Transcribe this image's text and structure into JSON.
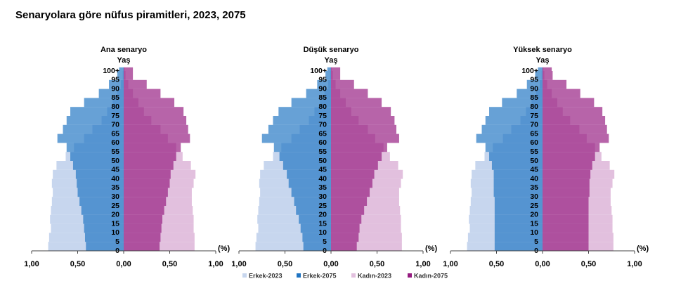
{
  "title": "Senaryolara göre nüfus piramitleri, 2023, 2075",
  "chart_data": [
    {
      "type": "pyramid",
      "subtitle": "Ana senaryo",
      "ylabel": "Yaş",
      "xlabel": "(%)",
      "categories": [
        "0",
        "5",
        "10",
        "15",
        "20",
        "25",
        "30",
        "35",
        "40",
        "45",
        "50",
        "55",
        "60",
        "65",
        "70",
        "75",
        "80",
        "85",
        "90",
        "95",
        "100+"
      ],
      "xlim": [
        -1,
        1
      ],
      "xticks": [
        {
          "value": -1,
          "label": "1,00"
        },
        {
          "value": -0.5,
          "label": "0,50"
        },
        {
          "value": 0,
          "label": "0,00"
        },
        {
          "value": 0.5,
          "label": "0,50"
        },
        {
          "value": 1,
          "label": "1,00"
        }
      ],
      "series": [
        {
          "name": "Erkek-2023",
          "color": "#c7d6ee",
          "values": [
            0.82,
            0.81,
            0.79,
            0.8,
            0.79,
            0.78,
            0.77,
            0.78,
            0.77,
            0.73,
            0.63,
            0.54,
            0.43,
            0.34,
            0.24,
            0.18,
            0.12,
            0.07,
            0.03,
            0.01,
            0.005
          ]
        },
        {
          "name": "Erkek-2075",
          "color": "#1f74c2",
          "values": [
            0.41,
            0.42,
            0.43,
            0.44,
            0.46,
            0.48,
            0.5,
            0.51,
            0.52,
            0.55,
            0.58,
            0.62,
            0.72,
            0.66,
            0.62,
            0.58,
            0.43,
            0.27,
            0.16,
            0.07,
            0.05
          ]
        },
        {
          "name": "Kadın-2023",
          "color": "#e2c0de",
          "values": [
            0.77,
            0.77,
            0.76,
            0.76,
            0.75,
            0.74,
            0.74,
            0.76,
            0.78,
            0.73,
            0.64,
            0.57,
            0.48,
            0.4,
            0.3,
            0.22,
            0.16,
            0.1,
            0.05,
            0.02,
            0.01
          ]
        },
        {
          "name": "Kadın-2075",
          "color": "#951b80",
          "values": [
            0.39,
            0.4,
            0.41,
            0.42,
            0.44,
            0.46,
            0.48,
            0.5,
            0.51,
            0.54,
            0.57,
            0.62,
            0.72,
            0.7,
            0.68,
            0.65,
            0.55,
            0.4,
            0.25,
            0.1,
            0.1
          ]
        }
      ]
    },
    {
      "type": "pyramid",
      "subtitle": "Düşük senaryo",
      "ylabel": "Yaş",
      "xlabel": "(%)",
      "categories": [
        "0",
        "5",
        "10",
        "15",
        "20",
        "25",
        "30",
        "35",
        "40",
        "45",
        "50",
        "55",
        "60",
        "65",
        "70",
        "75",
        "80",
        "85",
        "90",
        "95",
        "100+"
      ],
      "xlim": [
        -1,
        1
      ],
      "xticks": [
        {
          "value": -1,
          "label": "1,00"
        },
        {
          "value": -0.5,
          "label": "0,50"
        },
        {
          "value": 0,
          "label": "0,00"
        },
        {
          "value": 0.5,
          "label": "0,50"
        },
        {
          "value": 1,
          "label": "1,00"
        }
      ],
      "series": [
        {
          "name": "Erkek-2023",
          "color": "#c7d6ee",
          "values": [
            0.82,
            0.81,
            0.79,
            0.8,
            0.79,
            0.78,
            0.77,
            0.78,
            0.77,
            0.73,
            0.63,
            0.54,
            0.43,
            0.34,
            0.24,
            0.18,
            0.12,
            0.07,
            0.03,
            0.01,
            0.005
          ]
        },
        {
          "name": "Erkek-2075",
          "color": "#1f74c2",
          "values": [
            0.3,
            0.31,
            0.33,
            0.35,
            0.38,
            0.4,
            0.43,
            0.46,
            0.48,
            0.52,
            0.56,
            0.62,
            0.75,
            0.68,
            0.63,
            0.57,
            0.43,
            0.27,
            0.15,
            0.06,
            0.04
          ]
        },
        {
          "name": "Kadın-2023",
          "color": "#e2c0de",
          "values": [
            0.77,
            0.77,
            0.76,
            0.76,
            0.75,
            0.74,
            0.74,
            0.76,
            0.78,
            0.73,
            0.64,
            0.57,
            0.48,
            0.4,
            0.3,
            0.22,
            0.16,
            0.1,
            0.05,
            0.02,
            0.01
          ]
        },
        {
          "name": "Kadın-2075",
          "color": "#951b80",
          "values": [
            0.28,
            0.3,
            0.31,
            0.33,
            0.36,
            0.39,
            0.42,
            0.45,
            0.47,
            0.51,
            0.55,
            0.61,
            0.74,
            0.71,
            0.69,
            0.65,
            0.55,
            0.4,
            0.25,
            0.1,
            0.1
          ]
        }
      ]
    },
    {
      "type": "pyramid",
      "subtitle": "Yüksek senaryo",
      "ylabel": "Yaş",
      "xlabel": "(%)",
      "categories": [
        "0",
        "5",
        "10",
        "15",
        "20",
        "25",
        "30",
        "35",
        "40",
        "45",
        "50",
        "55",
        "60",
        "65",
        "70",
        "75",
        "80",
        "85",
        "90",
        "95",
        "100+"
      ],
      "xlim": [
        -1,
        1
      ],
      "xticks": [
        {
          "value": -1,
          "label": "1,00"
        },
        {
          "value": -0.5,
          "label": "0,50"
        },
        {
          "value": 0,
          "label": "0,00"
        },
        {
          "value": 0.5,
          "label": "0,50"
        },
        {
          "value": 1,
          "label": "1,00"
        }
      ],
      "series": [
        {
          "name": "Erkek-2023",
          "color": "#c7d6ee",
          "values": [
            0.82,
            0.81,
            0.79,
            0.8,
            0.79,
            0.78,
            0.77,
            0.78,
            0.77,
            0.73,
            0.63,
            0.54,
            0.43,
            0.34,
            0.24,
            0.18,
            0.12,
            0.07,
            0.03,
            0.01,
            0.005
          ]
        },
        {
          "name": "Erkek-2075",
          "color": "#1f74c2",
          "values": [
            0.52,
            0.52,
            0.52,
            0.52,
            0.52,
            0.52,
            0.53,
            0.53,
            0.53,
            0.55,
            0.58,
            0.62,
            0.72,
            0.66,
            0.62,
            0.58,
            0.44,
            0.28,
            0.17,
            0.08,
            0.05
          ]
        },
        {
          "name": "Kadın-2023",
          "color": "#e2c0de",
          "values": [
            0.77,
            0.77,
            0.76,
            0.76,
            0.75,
            0.74,
            0.74,
            0.76,
            0.78,
            0.73,
            0.64,
            0.57,
            0.48,
            0.4,
            0.3,
            0.22,
            0.16,
            0.1,
            0.05,
            0.02,
            0.01
          ]
        },
        {
          "name": "Kadın-2075",
          "color": "#951b80",
          "values": [
            0.5,
            0.5,
            0.5,
            0.5,
            0.5,
            0.5,
            0.51,
            0.51,
            0.52,
            0.54,
            0.57,
            0.62,
            0.72,
            0.7,
            0.68,
            0.65,
            0.56,
            0.41,
            0.26,
            0.11,
            0.1
          ]
        }
      ]
    }
  ]
}
